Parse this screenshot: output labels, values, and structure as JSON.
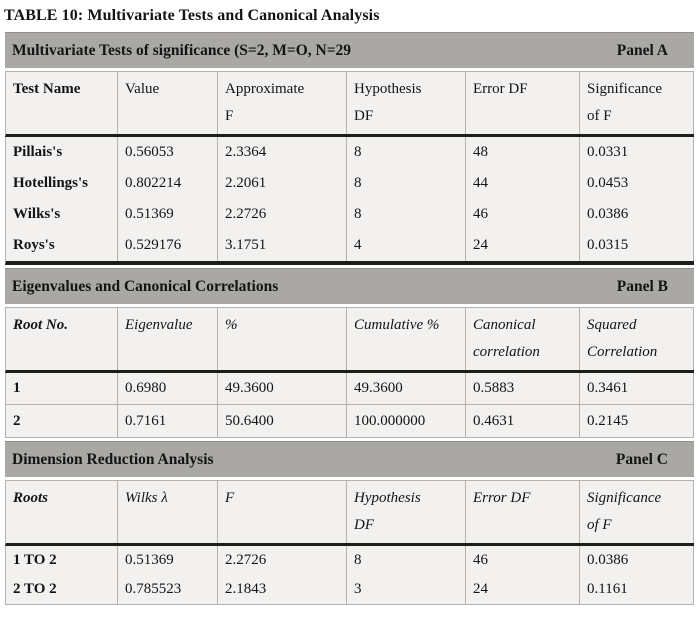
{
  "title": "TABLE 10: Multivariate Tests and Canonical Analysis",
  "colors": {
    "section_bar_gray": "#a9a8a5",
    "cell_background": "#f2f1ef",
    "light_border": "#b4b2ae",
    "dark_border": "#1d1d1b",
    "text": "#141414"
  },
  "panel_a": {
    "bar_label": "Multivariate Tests of significance (S=2, M=O, N=29",
    "bar_tag": "Panel A",
    "headers": [
      {
        "l1": "Test Name",
        "l2": ""
      },
      {
        "l1": "Value",
        "l2": ""
      },
      {
        "l1": "Approximate",
        "l2": "F"
      },
      {
        "l1": "Hypothesis",
        "l2": "DF"
      },
      {
        "l1": "Error DF",
        "l2": ""
      },
      {
        "l1": "Significance",
        "l2": "of F"
      }
    ],
    "rows": [
      [
        "Pillais's",
        "0.56053",
        "2.3364",
        "8",
        "48",
        "0.0331"
      ],
      [
        "Hotellings's",
        "0.802214",
        "2.2061",
        "8",
        "44",
        "0.0453"
      ],
      [
        "Wilks's",
        "0.51369",
        "2.2726",
        "8",
        "46",
        "0.0386"
      ],
      [
        "Roys's",
        "0.529176",
        "3.1751",
        "4",
        "24",
        "0.0315"
      ]
    ]
  },
  "panel_b": {
    "bar_label": "Eigenvalues and Canonical Correlations",
    "bar_tag": "Panel B",
    "headers": [
      {
        "l1": "Root No.",
        "l2": ""
      },
      {
        "l1": "Eigenvalue",
        "l2": ""
      },
      {
        "l1": "%",
        "l2": ""
      },
      {
        "l1": "Cumulative %",
        "l2": ""
      },
      {
        "l1": "Canonical",
        "l2": "correlation"
      },
      {
        "l1": "Squared",
        "l2": "Correlation"
      }
    ],
    "rows": [
      [
        "1",
        "0.6980",
        "49.3600",
        "49.3600",
        "0.5883",
        "0.3461"
      ],
      [
        "2",
        "0.7161",
        "50.6400",
        "100.000000",
        "0.4631",
        "0.2145"
      ]
    ]
  },
  "panel_c": {
    "bar_label": "Dimension Reduction Analysis",
    "bar_tag": "Panel C",
    "headers": [
      {
        "l1": "Roots",
        "l2": ""
      },
      {
        "l1": "Wilks λ",
        "l2": ""
      },
      {
        "l1": "F",
        "l2": ""
      },
      {
        "l1": "Hypothesis",
        "l2": "DF"
      },
      {
        "l1": "Error DF",
        "l2": ""
      },
      {
        "l1": "Significance",
        "l2": "of F"
      }
    ],
    "rows": [
      [
        "1 TO 2",
        "0.51369",
        "2.2726",
        "8",
        "46",
        "0.0386"
      ],
      [
        "2 TO 2",
        "0.785523",
        "2.1843",
        "3",
        "24",
        "0.1161"
      ]
    ]
  }
}
